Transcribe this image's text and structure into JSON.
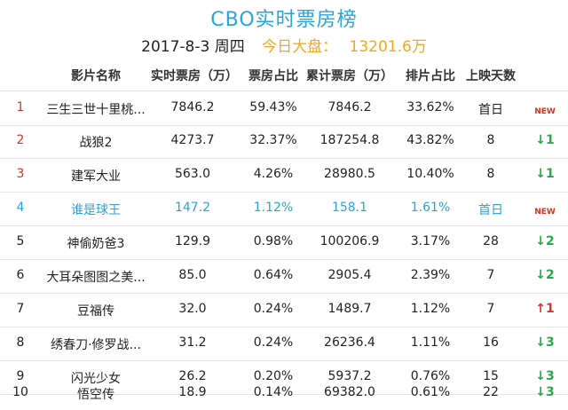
{
  "title": "CBO实时票房榜",
  "date": "2017-8-3 周四",
  "total_label": "今日大盘：",
  "total_value": "13201.6万",
  "columns": [
    "影片名称",
    "实时票房（万）",
    "票房占比",
    "累计票房（万）",
    "排片占比",
    "上映天数"
  ],
  "rows": [
    {
      "rank": "1",
      "name": "三生三世十里桃...",
      "realtime": "7846.2",
      "share": "59.43%",
      "cumulative": "7846.2",
      "schedule": "33.62%",
      "days": "首日",
      "trend_arrow": "",
      "trend_text": "NEW",
      "trend_type": "new",
      "rank_color": "red"
    },
    {
      "rank": "2",
      "name": "战狼2",
      "realtime": "4273.7",
      "share": "32.37%",
      "cumulative": "187254.8",
      "schedule": "43.82%",
      "days": "8",
      "trend_arrow": "↓",
      "trend_text": "1",
      "trend_type": "down",
      "rank_color": "red"
    },
    {
      "rank": "3",
      "name": "建军大业",
      "realtime": "563.0",
      "share": "4.26%",
      "cumulative": "28980.5",
      "schedule": "10.40%",
      "days": "8",
      "trend_arrow": "↓",
      "trend_text": "1",
      "trend_type": "down",
      "rank_color": "red"
    },
    {
      "rank": "4",
      "name": "谁是球王",
      "realtime": "147.2",
      "share": "1.12%",
      "cumulative": "158.1",
      "schedule": "1.61%",
      "days": "首日",
      "trend_arrow": "",
      "trend_text": "NEW",
      "trend_type": "new",
      "rank_color": "blue"
    },
    {
      "rank": "5",
      "name": "神偷奶爸3",
      "realtime": "129.9",
      "share": "0.98%",
      "cumulative": "100206.9",
      "schedule": "3.17%",
      "days": "28",
      "trend_arrow": "↓",
      "trend_text": "2",
      "trend_type": "down",
      "rank_color": "black"
    },
    {
      "rank": "6",
      "name": "大耳朵图图之美...",
      "realtime": "85.0",
      "share": "0.64%",
      "cumulative": "2905.4",
      "schedule": "2.39%",
      "days": "7",
      "trend_arrow": "↓",
      "trend_text": "2",
      "trend_type": "down",
      "rank_color": "black"
    },
    {
      "rank": "7",
      "name": "豆福传",
      "realtime": "32.0",
      "share": "0.24%",
      "cumulative": "1489.7",
      "schedule": "1.12%",
      "days": "7",
      "trend_arrow": "↑",
      "trend_text": "1",
      "trend_type": "up",
      "rank_color": "black"
    },
    {
      "rank": "8",
      "name": "绣春刀·修罗战...",
      "realtime": "31.2",
      "share": "0.24%",
      "cumulative": "26236.4",
      "schedule": "1.11%",
      "days": "16",
      "trend_arrow": "↓",
      "trend_text": "3",
      "trend_type": "down",
      "rank_color": "black"
    },
    {
      "rank": "9",
      "name": "闪光少女",
      "realtime": "26.2",
      "share": "0.20%",
      "cumulative": "5937.2",
      "schedule": "0.76%",
      "days": "15",
      "trend_arrow": "↓",
      "trend_text": "3",
      "trend_type": "down",
      "rank_color": "black"
    },
    {
      "rank": "10",
      "name": "悟空传",
      "realtime": "18.9",
      "share": "0.14%",
      "cumulative": "69382.0",
      "schedule": "0.61%",
      "days": "22",
      "trend_arrow": "↓",
      "trend_text": "3",
      "trend_type": "down",
      "rank_color": "black"
    }
  ],
  "colors": {
    "title": "#2ba3dc",
    "highlight": "#f5a623",
    "rank_red": "#d9322e",
    "blue_row": "#2ba3dc",
    "trend_down": "#2aa84a",
    "trend_up": "#d9322e",
    "trend_new": "#e0301e"
  }
}
